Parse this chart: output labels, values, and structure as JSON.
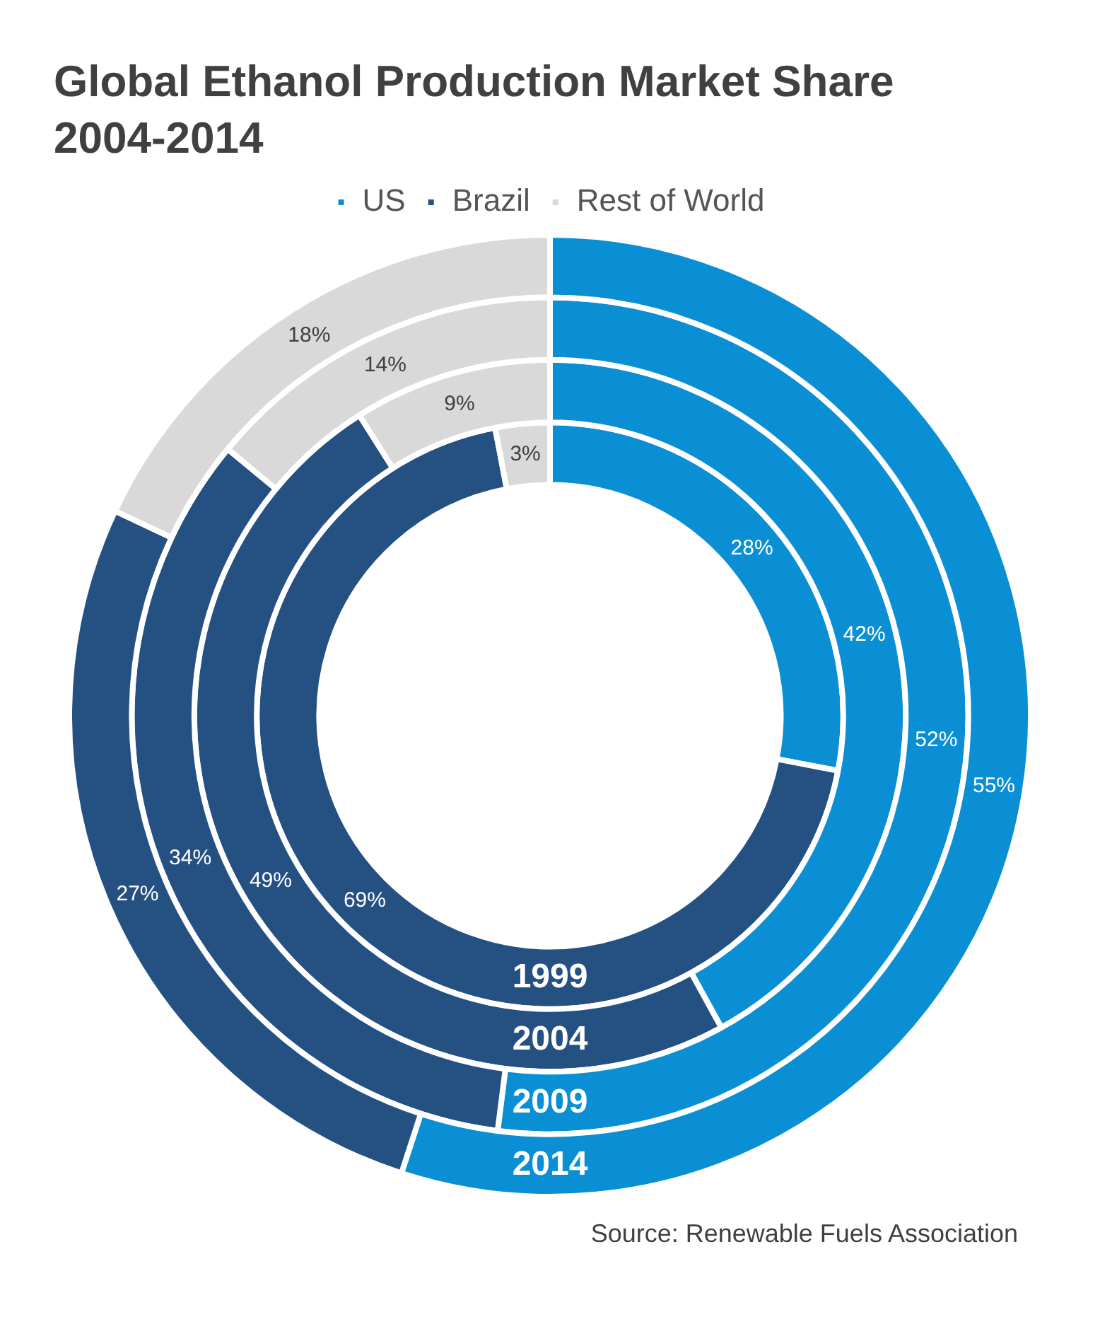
{
  "chart_data": {
    "type": "donut",
    "title": "Global Ethanol Production Market Share 2004-2014",
    "categories": [
      "US",
      "Brazil",
      "Rest of World"
    ],
    "colors": [
      "#0b8fd4",
      "#245082",
      "#d9d9d9"
    ],
    "legend": "top",
    "series": [
      {
        "name": "1999",
        "values": [
          28,
          69,
          3
        ],
        "value_labels": [
          "28%",
          "69%",
          "3%"
        ]
      },
      {
        "name": "2004",
        "values": [
          42,
          49,
          9
        ],
        "value_labels": [
          "42%",
          "49%",
          "9%"
        ]
      },
      {
        "name": "2009",
        "values": [
          52,
          34,
          14
        ],
        "value_labels": [
          "52%",
          "34%",
          "14%"
        ]
      },
      {
        "name": "2014",
        "values": [
          55,
          27,
          18
        ],
        "value_labels": [
          "55%",
          "27%",
          "18%"
        ]
      }
    ],
    "annotations": [
      "Source: Renewable Fuels Association"
    ]
  }
}
